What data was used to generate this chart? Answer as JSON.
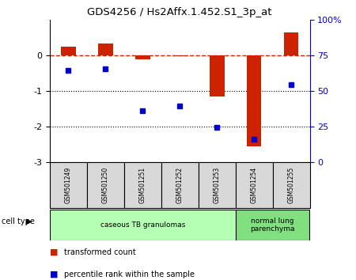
{
  "title": "GDS4256 / Hs2Affx.1.452.S1_3p_at",
  "samples": [
    "GSM501249",
    "GSM501250",
    "GSM501251",
    "GSM501252",
    "GSM501253",
    "GSM501254",
    "GSM501255"
  ],
  "bar_values": [
    0.25,
    0.32,
    -0.12,
    -0.02,
    -1.15,
    -2.55,
    0.65
  ],
  "dot_values": [
    -0.42,
    -0.38,
    -1.55,
    -1.42,
    -2.02,
    -2.35,
    -0.82
  ],
  "bar_color": "#cc2200",
  "dot_color": "#0000cc",
  "dashed_line_color": "#cc2200",
  "dotted_line_color": "#000000",
  "ylim_left": [
    -3,
    1
  ],
  "yticks_left": [
    -3,
    -2,
    -1,
    0
  ],
  "yticks_right_values": [
    0,
    25,
    50,
    75,
    100
  ],
  "yticks_right_positions": [
    -3,
    -2,
    -1,
    0,
    1
  ],
  "groups": [
    {
      "label": "caseous TB granulomas",
      "start": 0,
      "end": 5,
      "color": "#b3ffb3"
    },
    {
      "label": "normal lung\nparenchyma",
      "start": 5,
      "end": 7,
      "color": "#80e080"
    }
  ],
  "cell_type_label": "cell type",
  "legend_bar_label": "transformed count",
  "legend_dot_label": "percentile rank within the sample",
  "background_color": "#ffffff",
  "plot_bg_color": "#ffffff",
  "sample_box_color": "#d8d8d8"
}
